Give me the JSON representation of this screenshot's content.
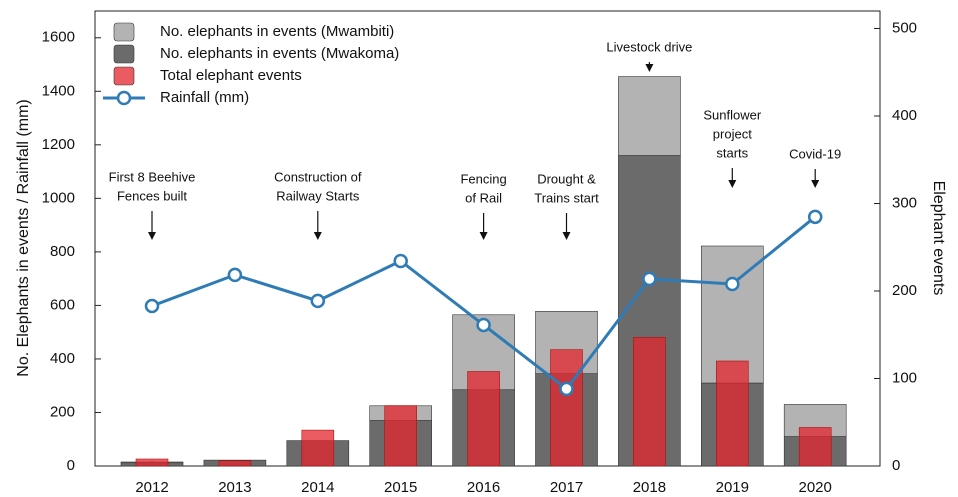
{
  "chart_data": {
    "type": "bar",
    "categories": [
      "2012",
      "2013",
      "2014",
      "2015",
      "2016",
      "2017",
      "2018",
      "2019",
      "2020"
    ],
    "series": [
      {
        "name": "No. elephants in events (Mwambiti)",
        "type": "bar",
        "stack": "elephants",
        "color": "#b3b3b3",
        "axis": "y",
        "values": [
          3,
          0,
          0,
          55,
          280,
          233,
          295,
          512,
          120
        ]
      },
      {
        "name": "No. elephants in events (Mwakoma)",
        "type": "bar",
        "stack": "elephants",
        "color": "#6b6b6b",
        "axis": "y",
        "values": [
          12,
          22,
          95,
          170,
          285,
          345,
          1160,
          310,
          110
        ]
      },
      {
        "name": "Total elephant events",
        "type": "bar",
        "color": "#e3262d",
        "axis": "y2",
        "values": [
          8,
          6,
          41,
          69,
          108,
          133,
          147,
          120,
          44
        ]
      },
      {
        "name": "Rainfall (mm)",
        "type": "line",
        "color": "#2f7bb5",
        "axis": "y",
        "values": [
          598,
          714,
          617,
          766,
          527,
          288,
          699,
          680,
          931
        ]
      }
    ],
    "y_label": "No. Elephants in events / Rainfall (mm)",
    "y2_label": "Elephant events",
    "ylim": [
      0,
      1700
    ],
    "yticks": [
      0,
      200,
      400,
      600,
      800,
      1000,
      1200,
      1400,
      1600
    ],
    "y2lim": [
      0,
      520
    ],
    "y2ticks": [
      0,
      100,
      200,
      300,
      400,
      500
    ],
    "legend": "top-left",
    "annotations": [
      {
        "category": 0,
        "lines": [
          "First 8 Beehive",
          "Fences built"
        ]
      },
      {
        "category": 2,
        "lines": [
          "Construction of",
          "Railway Starts"
        ]
      },
      {
        "category": 4,
        "lines": [
          "Fencing",
          "of Rail"
        ]
      },
      {
        "category": 5,
        "lines": [
          "Drought &",
          "Trains start"
        ]
      },
      {
        "category": 6,
        "lines": [
          "Livestock drive"
        ]
      },
      {
        "category": 7,
        "lines": [
          "Sunflower",
          "project",
          "starts"
        ]
      },
      {
        "category": 8,
        "lines": [
          "Covid-19"
        ]
      }
    ]
  }
}
